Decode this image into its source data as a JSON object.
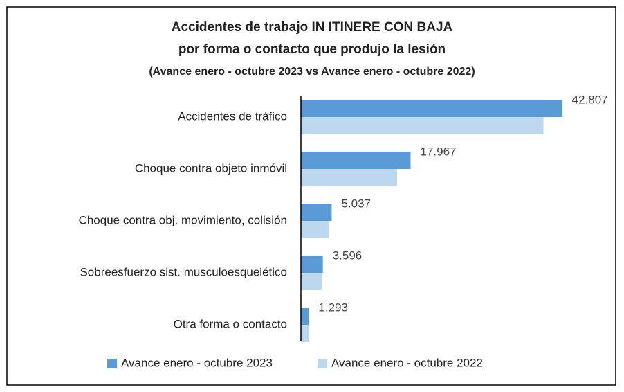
{
  "chart_data": {
    "type": "bar",
    "orientation": "horizontal",
    "title": "Accidentes de trabajo IN ITINERE CON BAJA",
    "subtitle": "por forma o contacto que produjo la lesión",
    "subtitle2": "(Avance enero - octubre 2023 vs Avance enero - octubre 2022)",
    "categories": [
      "Accidentes de tráfico",
      "Choque contra objeto inmóvil",
      "Choque contra obj. movimiento, colisión",
      "Sobreesfuerzo sist. musculoesquelético",
      "Otra forma o contacto"
    ],
    "series": [
      {
        "name": "Avance enero - octubre 2023",
        "color": "#5b9bd5",
        "values": [
          42807,
          17967,
          5037,
          3596,
          1293
        ],
        "value_labels": [
          "42.807",
          "17.967",
          "5.037",
          "3.596",
          "1.293"
        ]
      },
      {
        "name": "Avance enero - octubre 2022",
        "color": "#bdd7ee",
        "values": [
          39740,
          15740,
          4640,
          3400,
          1360
        ]
      }
    ],
    "xlim": [
      0,
      45000
    ],
    "legend": "bottom"
  }
}
